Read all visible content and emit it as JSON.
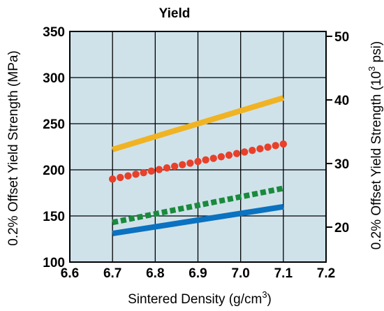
{
  "chart_data": {
    "type": "line",
    "title": "Yield",
    "xlabel": "Sintered Density (g/cm³)",
    "xlabel_main": "Sintered Density (g/cm",
    "xlabel_sup": "3",
    "xlabel_tail": ")",
    "ylabel": "0.2% Offset Yield Strength (MPa)",
    "y2label": "0.2% Offset Yield Strength (10³ psi)",
    "y2label_main": "0.2% Offset Yield Strength (10",
    "y2label_sup": "3",
    "y2label_tail": " psi)",
    "xlim": [
      6.6,
      7.2
    ],
    "ylim": [
      100,
      350
    ],
    "xticks": [
      "6.6",
      "6.7",
      "6.8",
      "6.9",
      "7.0",
      "7.1",
      "7.2"
    ],
    "yticks": [
      "100",
      "150",
      "200",
      "250",
      "300",
      "350"
    ],
    "y2ticks": [
      {
        "label": "20",
        "psi": 20
      },
      {
        "label": "30",
        "psi": 30
      },
      {
        "label": "40",
        "psi": 40
      },
      {
        "label": "50",
        "psi": 50
      }
    ],
    "grid": true,
    "plot_background": "#cfe2ea",
    "series": [
      {
        "x": [
          6.7,
          7.1
        ],
        "y": [
          222,
          278
        ],
        "color": "#f0b323",
        "style": "solid"
      },
      {
        "x": [
          6.7,
          7.1
        ],
        "y": [
          190,
          228
        ],
        "color": "#e8402a",
        "style": "dotted"
      },
      {
        "x": [
          6.7,
          7.1
        ],
        "y": [
          143,
          180
        ],
        "color": "#1a8a3c",
        "style": "dashed"
      },
      {
        "x": [
          6.7,
          7.1
        ],
        "y": [
          131,
          160
        ],
        "color": "#0a72c0",
        "style": "solid"
      }
    ]
  }
}
